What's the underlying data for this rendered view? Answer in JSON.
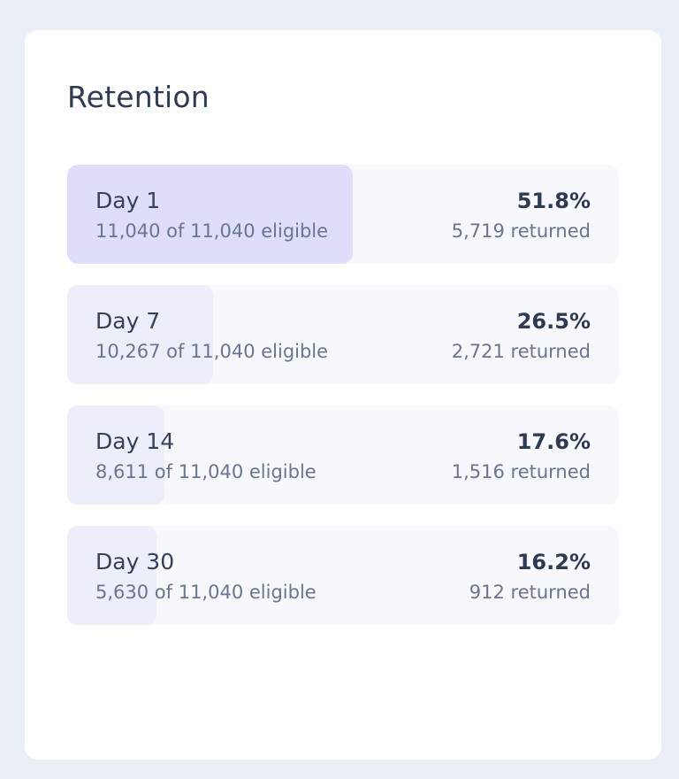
{
  "card": {
    "title": "Retention"
  },
  "colors": {
    "fill_primary": "#dedefa",
    "fill_secondary": "#eceefa",
    "row_background": "#f7f8fb"
  },
  "rows": [
    {
      "day": "Day 1",
      "eligible": "11,040 of 11,040 eligible",
      "percent": "51.8%",
      "returned": "5,719 returned",
      "rate": 0.518
    },
    {
      "day": "Day 7",
      "eligible": "10,267 of 11,040 eligible",
      "percent": "26.5%",
      "returned": "2,721 returned",
      "rate": 0.265
    },
    {
      "day": "Day 14",
      "eligible": "8,611 of 11,040 eligible",
      "percent": "17.6%",
      "returned": "1,516 returned",
      "rate": 0.176
    },
    {
      "day": "Day 30",
      "eligible": "5,630 of 11,040 eligible",
      "percent": "16.2%",
      "returned": "912 returned",
      "rate": 0.162
    }
  ]
}
